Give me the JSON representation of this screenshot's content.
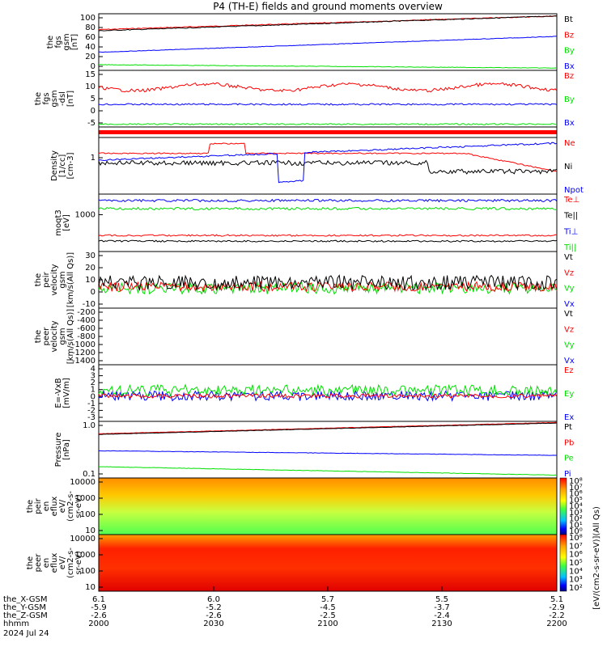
{
  "title": "P4 (TH-E) fields and ground moments overview",
  "colors": {
    "black": "#000000",
    "red": "#ff0000",
    "green": "#00e000",
    "blue": "#0000ff"
  },
  "panels": [
    {
      "id": "fgs",
      "ylabel": [
        "the",
        "fgs",
        "gsm",
        "[nT]"
      ],
      "yticks": [
        "100",
        "80",
        "60",
        "40",
        "20",
        "0"
      ],
      "legend": [
        "Bt",
        "Bz",
        "By",
        "Bx"
      ]
    },
    {
      "id": "fgs_dsl",
      "ylabel": [
        "the",
        "fgs",
        "gsm",
        "-dsl",
        "[nT]"
      ],
      "yticks": [
        "15",
        "10",
        "5",
        "0",
        "-5"
      ],
      "legend": [
        "Bz",
        "By",
        "Bx"
      ]
    },
    {
      "id": "bar",
      "ylabel": [],
      "yticks": [],
      "legend": []
    },
    {
      "id": "density",
      "ylabel": [
        "Density",
        "[1/cc]",
        "[cm-3]"
      ],
      "yticks": [
        "1"
      ],
      "legend": [
        "Ne",
        "Ni",
        "Npot"
      ]
    },
    {
      "id": "temp",
      "ylabel": [
        "moqt3",
        "[eV]"
      ],
      "yticks": [
        "1000"
      ],
      "legend": [
        "Te⊥",
        "Te||",
        "Ti⊥",
        "Ti||"
      ]
    },
    {
      "id": "peir_v",
      "ylabel": [
        "the",
        "peir",
        "velocity",
        "gsm",
        "[km/s(All Qs)]"
      ],
      "yticks": [
        "30",
        "20",
        "10",
        "0",
        "-10"
      ],
      "legend": [
        "Vt",
        "Vz",
        "Vy",
        "Vx"
      ]
    },
    {
      "id": "peer_v",
      "ylabel": [
        "the",
        "peer",
        "velocity",
        "gsm",
        "[km/s(All Qs)]"
      ],
      "yticks": [
        "-200",
        "-400",
        "-600",
        "-800",
        "-1000",
        "-1200",
        "-1400"
      ],
      "legend": [
        "Vt",
        "Vz",
        "Vy",
        "Vx"
      ]
    },
    {
      "id": "efield",
      "ylabel": [
        "E=-VxB",
        "[mV/m]"
      ],
      "yticks": [
        "4",
        "3",
        "2",
        "1",
        "0",
        "-1",
        "-2",
        "-3"
      ],
      "legend": [
        "Ez",
        "Ey",
        "Ex"
      ]
    },
    {
      "id": "pressure",
      "ylabel": [
        "Pressure",
        "[nPa]"
      ],
      "yticks": [
        "1.0",
        "0.1"
      ],
      "legend": [
        "Pt",
        "Pb",
        "Pe",
        "Pi"
      ]
    },
    {
      "id": "peir_en",
      "ylabel": [
        "the",
        "peir",
        "en",
        "eflux",
        "eV/",
        "(cm2-s-",
        "sr-eV)"
      ],
      "yticks": [
        "10000",
        "1000",
        "100",
        "10"
      ],
      "legend": []
    },
    {
      "id": "peer_en",
      "ylabel": [
        "the",
        "peer",
        "en",
        "eflux",
        "eV/",
        "(cm2-s-",
        "sr-eV)"
      ],
      "yticks": [
        "10000",
        "1000",
        "100",
        "10"
      ],
      "legend": []
    }
  ],
  "colorbar": {
    "ticks": [
      "10⁸",
      "10⁷",
      "10⁶",
      "10⁵",
      "10⁴",
      "10³",
      "10²",
      "10¹",
      "10⁰"
    ],
    "ticks2": [
      "10⁸",
      "10⁷",
      "10⁶",
      "10⁵",
      "10⁴",
      "10³",
      "10²"
    ],
    "label": "[eV/(cm2-s-sr-eV)](All Qs)"
  },
  "ephemeris": {
    "rows": [
      {
        "name": "the_X-GSM",
        "values": [
          "6.1",
          "6.0",
          "5.7",
          "5.5",
          "5.1"
        ]
      },
      {
        "name": "the_Y-GSM",
        "values": [
          "-5.9",
          "-5.2",
          "-4.5",
          "-3.7",
          "-2.9"
        ]
      },
      {
        "name": "the_Z-GSM",
        "values": [
          "-2.6",
          "-2.6",
          "-2.5",
          "-2.4",
          "-2.2"
        ]
      },
      {
        "name": "hhmm",
        "values": [
          "2000",
          "2030",
          "2100",
          "2130",
          "2200"
        ]
      }
    ],
    "date": "2024 Jul 24"
  },
  "chart_data": {
    "type": "line",
    "title": "P4 (TH-E) fields and ground moments overview",
    "x": [
      "2000",
      "2030",
      "2100",
      "2130",
      "2200"
    ],
    "series": [
      {
        "name": "Bt",
        "values": [
          70,
          80,
          88,
          95,
          100
        ]
      },
      {
        "name": "Bz",
        "values": [
          68,
          78,
          86,
          94,
          99
        ]
      },
      {
        "name": "By",
        "values": [
          25,
          33,
          40,
          48,
          56
        ]
      },
      {
        "name": "Bx",
        "values": [
          8,
          5,
          2,
          -1,
          -4
        ]
      }
    ]
  }
}
